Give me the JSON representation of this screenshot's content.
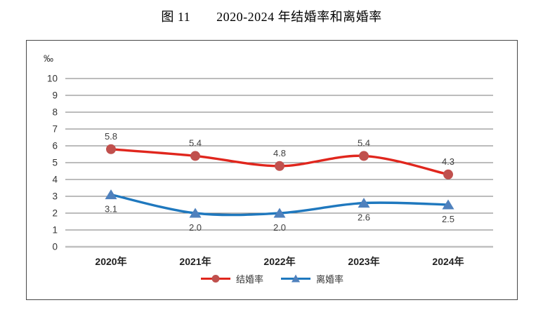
{
  "title": "图 11　　2020-2024 年结婚率和离婚率",
  "chart_data": {
    "type": "line",
    "title": "图 11 2020-2024 年结婚率和离婚率",
    "unit_label": "‰",
    "categories": [
      "2020年",
      "2021年",
      "2022年",
      "2023年",
      "2024年"
    ],
    "series": [
      {
        "name": "结婚率",
        "values": [
          5.8,
          5.4,
          4.8,
          5.4,
          4.3
        ],
        "color": "#e0261d",
        "marker_color": "#c0504d",
        "marker": "circle",
        "label_position": "above"
      },
      {
        "name": "离婚率",
        "values": [
          3.1,
          2.0,
          2.0,
          2.6,
          2.5
        ],
        "color": "#1f78be",
        "marker_color": "#4f81bd",
        "marker": "triangle",
        "label_position": "below"
      }
    ],
    "ylim": [
      0,
      10
    ],
    "ytick_step": 1,
    "grid": true,
    "smooth": true,
    "legend_position": "bottom",
    "grid_color": "#787878",
    "axis_line_color": "#bfbfbf",
    "tick_label_color": "#333333",
    "data_label_color": "#3f3f3f"
  }
}
